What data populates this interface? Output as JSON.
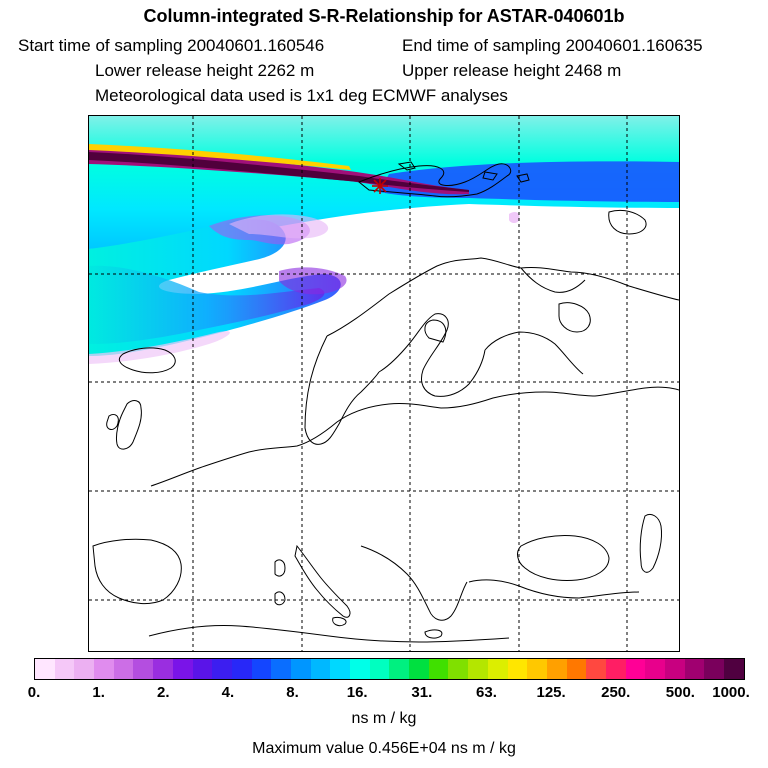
{
  "header": {
    "title": "Column-integrated S-R-Relationship for ASTAR-040601b",
    "start_time": "Start time of sampling 20040601.160546",
    "end_time": "End time of sampling 20040601.160635",
    "lower_height": "Lower release height 2262 m",
    "upper_height": "Upper release height 2468 m",
    "met_data": "Meteorological data used is 1x1 deg ECMWF analyses"
  },
  "colorbar": {
    "colors": [
      "#ffe6ff",
      "#f5c8f8",
      "#ecb0f2",
      "#e08cee",
      "#cc6ee6",
      "#b44ee0",
      "#9a2ee0",
      "#7a14e8",
      "#5a14e8",
      "#3c1ef0",
      "#2828f8",
      "#1446ff",
      "#0a6eff",
      "#0096ff",
      "#00b8ff",
      "#00d8ff",
      "#00ffe8",
      "#00ffc0",
      "#00f080",
      "#00e040",
      "#40e000",
      "#80e000",
      "#b4e600",
      "#dcee00",
      "#ffe600",
      "#ffc800",
      "#ffa000",
      "#ff7800",
      "#ff4840",
      "#ff1e64",
      "#ff0096",
      "#e8008c",
      "#c80080",
      "#a00070",
      "#7a005c",
      "#500040"
    ],
    "tick_labels": [
      "0.",
      "1.",
      "2.",
      "4.",
      "8.",
      "16.",
      "31.",
      "63.",
      "125.",
      "250.",
      "500.",
      "1000."
    ],
    "unit": "ns m / kg"
  },
  "footer": {
    "maximum": "Maximum value  0.456E+04 ns m / kg"
  },
  "map": {
    "marker": "release-point-star"
  }
}
